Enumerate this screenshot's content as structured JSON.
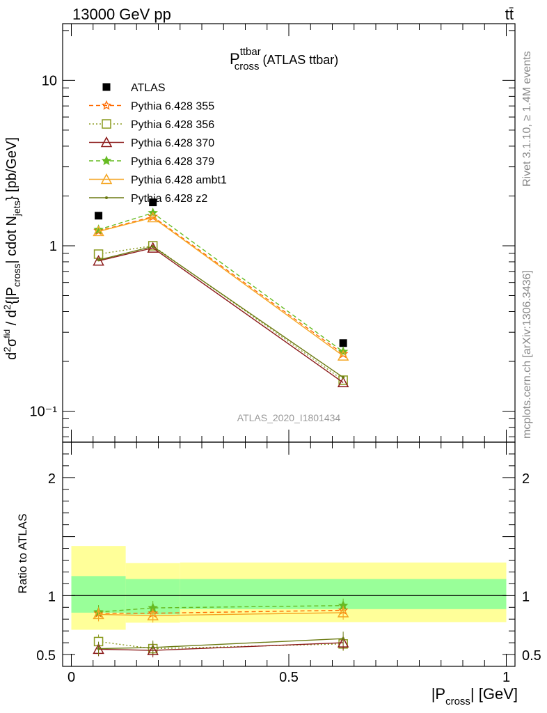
{
  "header": {
    "left_label": "13000 GeV pp",
    "right_label": "tt̄"
  },
  "side_labels": {
    "rivet": "Rivet 3.1.10, ≥ 1.4M events",
    "mcplots": "mcplots.cern.ch [arXiv:1306.3436]"
  },
  "colors": {
    "ATLAS": "#000000",
    "Pythia 6.428 355": "#ff6a00",
    "Pythia 6.428 356": "#8a9a1e",
    "Pythia 6.428 370": "#8b1a1a",
    "Pythia 6.428 379": "#66bb22",
    "Pythia 6.428 ambt1": "#f5a623",
    "Pythia 6.428 z2": "#6b7a12",
    "band_inner": "#99ff99",
    "band_outer": "#ffff99"
  },
  "chart_data": [
    {
      "type": "line",
      "panel": "main",
      "title": "P_cross^ttbar (ATLAS ttbar)",
      "title_main": "P",
      "title_sup": "ttbar",
      "title_sub": "cross",
      "title_rest": " (ATLAS ttbar)",
      "watermark": "ATLAS_2020_I1801434",
      "ylabel": "d²σ^fid / d²{|P_cross| cdot N_jets} [pb/GeV]",
      "yscale": "log",
      "ylim": [
        0.065,
        22
      ],
      "xlim": [
        -0.02,
        1.02
      ],
      "ytick_labels": [
        "10⁻¹",
        "1",
        "10"
      ],
      "legend_position": "top-left",
      "series": [
        {
          "name": "ATLAS",
          "marker": "filled-square",
          "x": [
            0.0625,
            0.1875,
            0.625
          ],
          "values": [
            1.52,
            1.83,
            0.258
          ]
        },
        {
          "name": "Pythia 6.428 355",
          "marker": "open-star",
          "line": "dashed",
          "x": [
            0.0625,
            0.1875,
            0.625
          ],
          "values": [
            1.23,
            1.5,
            0.222
          ]
        },
        {
          "name": "Pythia 6.428 356",
          "marker": "open-square",
          "line": "dotted",
          "x": [
            0.0625,
            0.1875,
            0.625
          ],
          "values": [
            0.89,
            1.0,
            0.154
          ]
        },
        {
          "name": "Pythia 6.428 370",
          "marker": "open-triangle",
          "line": "solid",
          "x": [
            0.0625,
            0.1875,
            0.625
          ],
          "values": [
            0.81,
            0.97,
            0.149
          ]
        },
        {
          "name": "Pythia 6.428 379",
          "marker": "filled-star",
          "line": "dashed",
          "x": [
            0.0625,
            0.1875,
            0.625
          ],
          "values": [
            1.25,
            1.58,
            0.229
          ]
        },
        {
          "name": "Pythia 6.428 ambt1",
          "marker": "open-triangle",
          "line": "solid",
          "x": [
            0.0625,
            0.1875,
            0.625
          ],
          "values": [
            1.22,
            1.48,
            0.216
          ]
        },
        {
          "name": "Pythia 6.428 z2",
          "marker": "dot",
          "line": "solid",
          "x": [
            0.0625,
            0.1875,
            0.625
          ],
          "values": [
            0.82,
            0.99,
            0.16
          ]
        }
      ]
    },
    {
      "type": "line",
      "panel": "ratio",
      "ylabel": "Ratio to ATLAS",
      "xlabel": "|P_cross| [GeV]",
      "xlabel_pre": "|P",
      "xlabel_sub": "cross",
      "xlabel_post": "| [GeV]",
      "ylim": [
        0.4,
        2.3
      ],
      "xlim": [
        -0.02,
        1.02
      ],
      "ytick_labels": [
        "0.5",
        "1",
        "2"
      ],
      "xtick_labels": [
        "0",
        "0.5",
        "1"
      ],
      "reference_line": 1.0,
      "uncertainty_bands": [
        {
          "x_low": 0.0,
          "x_high": 0.125,
          "inner": [
            0.855,
            1.165
          ],
          "outer": [
            0.71,
            1.42
          ]
        },
        {
          "x_low": 0.125,
          "x_high": 0.25,
          "inner": [
            0.84,
            1.14
          ],
          "outer": [
            0.77,
            1.275
          ]
        },
        {
          "x_low": 0.25,
          "x_high": 1.0,
          "inner": [
            0.885,
            1.14
          ],
          "outer": [
            0.775,
            1.28
          ]
        }
      ],
      "series": [
        {
          "name": "Pythia 6.428 355",
          "x": [
            0.0625,
            0.1875,
            0.625
          ],
          "values": [
            0.85,
            0.85,
            0.875
          ]
        },
        {
          "name": "Pythia 6.428 356",
          "x": [
            0.0625,
            0.1875,
            0.625
          ],
          "values": [
            0.61,
            0.55,
            0.59
          ]
        },
        {
          "name": "Pythia 6.428 370",
          "x": [
            0.0625,
            0.1875,
            0.625
          ],
          "values": [
            0.545,
            0.535,
            0.6
          ]
        },
        {
          "name": "Pythia 6.428 379",
          "x": [
            0.0625,
            0.1875,
            0.625
          ],
          "values": [
            0.86,
            0.895,
            0.915
          ]
        },
        {
          "name": "Pythia 6.428 ambt1",
          "x": [
            0.0625,
            0.1875,
            0.625
          ],
          "values": [
            0.84,
            0.83,
            0.855
          ]
        },
        {
          "name": "Pythia 6.428 z2",
          "x": [
            0.0625,
            0.1875,
            0.625
          ],
          "values": [
            0.55,
            0.56,
            0.635
          ]
        }
      ]
    }
  ]
}
